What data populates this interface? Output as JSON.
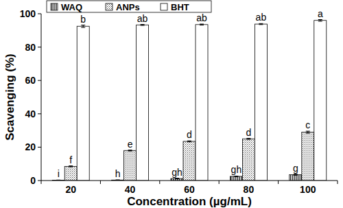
{
  "chart_data": {
    "type": "bar",
    "x_label": "Concentration (µg/mL)",
    "y_label": "Scavenging (%)",
    "categories": [
      20,
      40,
      60,
      80,
      100
    ],
    "series": [
      {
        "name": "WAQ",
        "color": "#333333",
        "values": [
          0.2,
          0.3,
          1.2,
          2.5,
          3.5
        ],
        "errors": [
          0.1,
          0.1,
          0.2,
          0.2,
          0.3
        ],
        "annotations": [
          "i",
          "h",
          "gh",
          "gh",
          "g"
        ]
      },
      {
        "name": "ANPs",
        "color": "#444444",
        "values": [
          8.5,
          18,
          23.5,
          25,
          29
        ],
        "errors": [
          0.3,
          0.3,
          0.3,
          0.3,
          0.6
        ],
        "annotations": [
          "f",
          "e",
          "d",
          "d",
          "c"
        ]
      },
      {
        "name": "BHT",
        "color": "#ffffff",
        "values": [
          92.5,
          93.3,
          93.5,
          93.8,
          96
        ],
        "errors": [
          0.7,
          0.3,
          0.3,
          0.3,
          0.5
        ],
        "annotations": [
          "b",
          "ab",
          "ab",
          "ab",
          "a"
        ]
      }
    ],
    "ylim": [
      0,
      100
    ],
    "yticks": [
      0,
      20,
      40,
      60,
      80,
      100
    ],
    "grid": false,
    "legend": "top-left"
  }
}
